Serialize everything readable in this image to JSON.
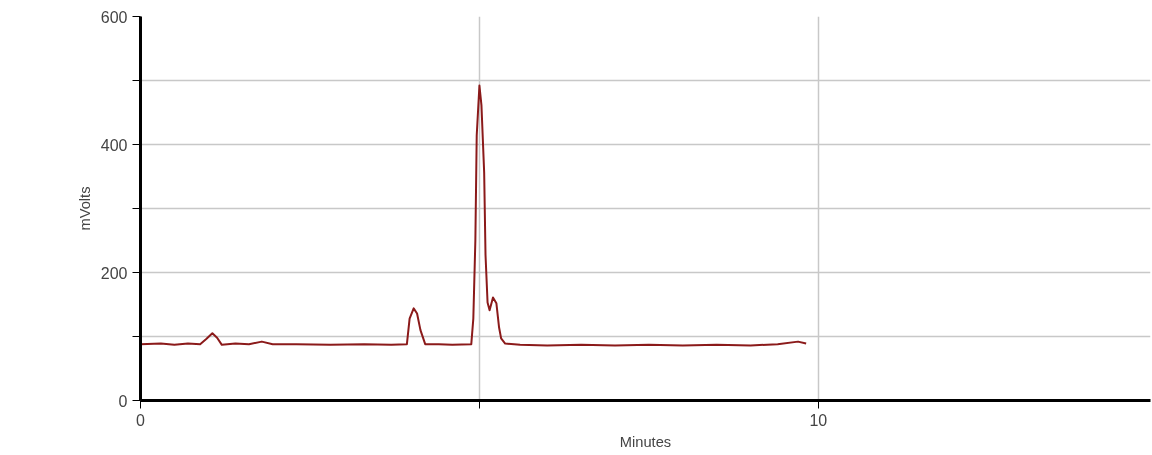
{
  "chart_data": {
    "type": "line",
    "xlabel": "Minutes",
    "ylabel": "mVolts",
    "xlim": [
      0,
      14.9
    ],
    "ylim": [
      0,
      600
    ],
    "xticks": [
      0,
      {
        "value": 5,
        "label": null
      },
      10
    ],
    "yticks": [
      0,
      {
        "value": 100,
        "label": null
      },
      200,
      {
        "value": 300,
        "label": null
      },
      400,
      {
        "value": 500,
        "label": null
      },
      600
    ],
    "grid": true,
    "marker": "none",
    "line_style": "solid",
    "series": [
      {
        "color": "#8b1a1a",
        "x": [
          0,
          0.3,
          0.5,
          0.7,
          0.88,
          0.97,
          1.06,
          1.13,
          1.2,
          1.4,
          1.6,
          1.79,
          1.95,
          2.3,
          2.8,
          3.3,
          3.7,
          3.93,
          3.97,
          4.03,
          4.08,
          4.13,
          4.2,
          4.4,
          4.6,
          4.88,
          4.91,
          4.94,
          4.96,
          5.0,
          5.03,
          5.07,
          5.09,
          5.12,
          5.15,
          5.2,
          5.25,
          5.29,
          5.32,
          5.38,
          5.6,
          6.0,
          6.5,
          7.0,
          7.5,
          8.0,
          8.5,
          9.0,
          9.4,
          9.7,
          9.82
        ],
        "values": [
          88,
          89,
          87,
          89,
          88,
          96,
          105,
          98,
          87,
          89,
          88,
          92,
          88,
          88,
          87,
          88,
          87,
          88,
          128,
          144,
          136,
          110,
          88,
          88,
          87,
          88,
          128,
          250,
          414,
          492,
          461,
          356,
          227,
          153,
          141,
          161,
          152,
          114,
          97,
          89,
          87,
          86,
          87,
          86,
          87,
          86,
          87,
          86,
          88,
          92,
          89
        ]
      }
    ]
  }
}
